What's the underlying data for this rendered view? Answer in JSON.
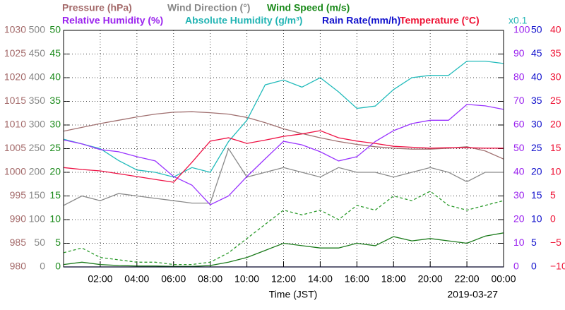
{
  "chart_data": {
    "type": "line",
    "x": [
      0,
      1,
      2,
      3,
      4,
      5,
      6,
      7,
      8,
      9,
      10,
      11,
      12,
      13,
      14,
      15,
      16,
      17,
      18,
      19,
      20,
      21,
      22,
      23,
      24
    ],
    "xlim": [
      0,
      24
    ],
    "xticks": [
      {
        "value": 2,
        "label": "02:00"
      },
      {
        "value": 4,
        "label": "04:00"
      },
      {
        "value": 6,
        "label": "06:00"
      },
      {
        "value": 8,
        "label": "08:00"
      },
      {
        "value": 10,
        "label": "10:00"
      },
      {
        "value": 12,
        "label": "12:00"
      },
      {
        "value": 14,
        "label": "14:00"
      },
      {
        "value": 16,
        "label": "16:00"
      },
      {
        "value": 18,
        "label": "18:00"
      },
      {
        "value": 20,
        "label": "20:00"
      },
      {
        "value": 22,
        "label": "22:00"
      },
      {
        "value": 24,
        "label": "00:00"
      }
    ],
    "xlabel": "Time (JST)",
    "date": "2019-03-27",
    "grid": true,
    "axes": [
      {
        "title": "Pressure (hPa)",
        "color": "#a46a6a",
        "lim": [
          980,
          1030
        ],
        "ticks": [
          980,
          985,
          990,
          995,
          1000,
          1005,
          1010,
          1015,
          1020,
          1025,
          1030
        ]
      },
      {
        "title": "Wind Direction (°)",
        "color": "#888888",
        "lim": [
          0,
          500
        ],
        "ticks": [
          0,
          50,
          100,
          150,
          200,
          250,
          300,
          350,
          400,
          450,
          500
        ]
      },
      {
        "title": "Wind Speed (m/s)",
        "color": "#1a8a1a",
        "lim": [
          0,
          50
        ],
        "ticks": [
          0,
          5,
          10,
          15,
          20,
          25,
          30,
          35,
          40,
          45,
          50
        ]
      },
      {
        "title": "Relative Humidity (%)",
        "color": "#9a22ee",
        "lim": [
          0,
          100
        ],
        "ticks": [
          0,
          10,
          20,
          30,
          40,
          50,
          60,
          70,
          80,
          90,
          100
        ]
      },
      {
        "title": "Absolute Humidity (g/m³)",
        "color": "#22b4b4",
        "lim": [
          0,
          10
        ],
        "scale_label": "x0.1"
      },
      {
        "title": "Rain Rate(mm/h)",
        "color": "#1010cc",
        "lim": [
          0,
          50
        ],
        "ticks": [
          0,
          5,
          10,
          15,
          20,
          25,
          30,
          35,
          40,
          45,
          50
        ]
      },
      {
        "title": "Temperature (°C)",
        "color": "#ee1133",
        "lim": [
          -10,
          40
        ],
        "ticks": [
          {
            "value": -10,
            "label": "−10"
          },
          {
            "value": -5,
            "label": "−5"
          },
          0,
          5,
          10,
          15,
          20,
          25,
          30,
          35,
          40
        ]
      }
    ],
    "series": [
      {
        "axis": 1,
        "color": "#8a8a8a",
        "values": [
          130,
          150,
          140,
          155,
          150,
          145,
          140,
          135,
          135,
          250,
          190,
          200,
          210,
          200,
          190,
          210,
          200,
          200,
          190,
          200,
          210,
          200,
          180,
          200,
          200
        ]
      },
      {
        "axis": 2,
        "color": "#2a9a2a",
        "dashed": true,
        "values": [
          3,
          4,
          2,
          1.5,
          1,
          1,
          0.5,
          0.5,
          1,
          3,
          6,
          9,
          12,
          11,
          12,
          10,
          13,
          12,
          15,
          14,
          16,
          13,
          12,
          13,
          14
        ]
      },
      {
        "axis": 2,
        "color": "#1a7a1a",
        "values": [
          0.5,
          1,
          0.5,
          0.3,
          0.2,
          0.2,
          0.1,
          0.1,
          0.3,
          1,
          2,
          3.5,
          5,
          4.5,
          4,
          4,
          5,
          4.5,
          6.4,
          5.5,
          6,
          5.5,
          5,
          6.5,
          7.2
        ]
      },
      {
        "axis": 0,
        "color": "#a07070",
        "values": [
          1008.7,
          1009.5,
          1010.3,
          1011,
          1011.7,
          1012.3,
          1012.7,
          1012.8,
          1012.6,
          1012.3,
          1011.6,
          1010.5,
          1009.2,
          1008.2,
          1007.3,
          1006.5,
          1005.9,
          1005.4,
          1005.1,
          1004.9,
          1004.9,
          1005.1,
          1005.4,
          1004.5,
          1002.8
        ]
      },
      {
        "axis": 4,
        "color": "#22bbbb",
        "values": [
          5.4,
          5.2,
          5.0,
          4.5,
          4.1,
          4.0,
          3.8,
          4.2,
          4.0,
          5.3,
          6.2,
          7.7,
          7.9,
          7.6,
          8.0,
          7.4,
          6.7,
          6.8,
          7.5,
          8.0,
          8.1,
          8.1,
          8.7,
          8.7,
          8.6
        ]
      },
      {
        "axis": 3,
        "color": "#9933ff",
        "values": [
          53.7,
          52,
          49.6,
          48.7,
          46.6,
          44.8,
          38.2,
          34.6,
          26.3,
          30,
          38.2,
          45.7,
          53.1,
          51.6,
          48.7,
          44.8,
          46.6,
          53,
          57.6,
          60.6,
          62,
          62,
          68.7,
          68.1,
          66.6
        ]
      },
      {
        "axis": 6,
        "color": "#ee1144",
        "values": [
          11,
          10.6,
          10.3,
          9.7,
          9.1,
          8.5,
          7.9,
          12.1,
          16.6,
          17.3,
          16.1,
          16.8,
          17.6,
          18.1,
          18.8,
          17.3,
          16.6,
          16.1,
          15.5,
          15.3,
          15.1,
          15.2,
          15.2,
          15.1,
          15.1
        ]
      },
      {
        "axis": 5,
        "color": "#1010cc",
        "values": [
          0,
          0,
          0,
          0,
          0,
          0,
          0,
          0,
          0,
          0,
          0,
          0,
          0,
          0,
          0,
          0,
          0,
          0,
          0,
          0,
          0,
          0,
          0,
          0,
          0
        ]
      }
    ]
  }
}
